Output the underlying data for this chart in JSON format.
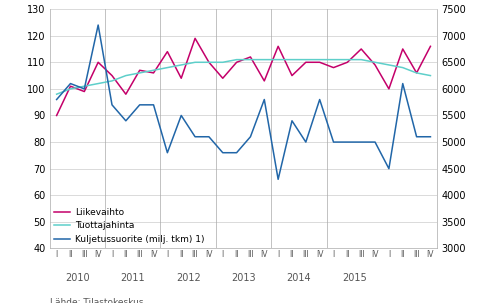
{
  "liikevaihto": [
    90,
    101,
    99,
    110,
    105,
    98,
    107,
    106,
    114,
    104,
    119,
    110,
    104,
    110,
    112,
    103,
    116,
    105,
    110,
    110,
    108,
    110,
    115,
    109,
    100,
    115,
    106,
    116
  ],
  "tuottajahinta": [
    98,
    100,
    101,
    102,
    103,
    105,
    106,
    107,
    108,
    109,
    110,
    110,
    110,
    111,
    111,
    111,
    111,
    111,
    111,
    111,
    111,
    111,
    111,
    110,
    109,
    108,
    106,
    105
  ],
  "kuljetussuorite_right": [
    5800,
    6100,
    6000,
    7200,
    5700,
    5400,
    5700,
    5700,
    4800,
    5500,
    5100,
    5100,
    4800,
    4800,
    5100,
    5800,
    4300,
    5400,
    5000,
    5800,
    5000,
    5000,
    5000,
    5000,
    4500,
    6100,
    5100,
    5100
  ],
  "quarters": [
    "I",
    "II",
    "III",
    "IV",
    "I",
    "II",
    "III",
    "IV",
    "I",
    "II",
    "III",
    "IV",
    "I",
    "II",
    "III",
    "IV",
    "I",
    "II",
    "III",
    "IV",
    "I",
    "II",
    "III",
    "IV",
    "I",
    "II",
    "III",
    "IV"
  ],
  "years": [
    2010,
    2011,
    2012,
    2013,
    2014,
    2015
  ],
  "ylim_left": [
    40,
    130
  ],
  "ylim_right": [
    3000,
    7500
  ],
  "yticks_left": [
    40,
    50,
    60,
    70,
    80,
    90,
    100,
    110,
    120,
    130
  ],
  "yticks_right": [
    3000,
    3500,
    4000,
    4500,
    5000,
    5500,
    6000,
    6500,
    7000,
    7500
  ],
  "color_liikevaihto": "#c4006a",
  "color_tuottajahinta": "#5ecfca",
  "color_kuljetussuorite": "#2166a8",
  "legend_labels": [
    "Liikevaihto",
    "Tuottajahinta",
    "Kuljetussuorite (milj. tkm) 1)"
  ],
  "footer": "Lähde: Tilastokeskus",
  "background_color": "#ffffff",
  "grid_color": "#cccccc"
}
